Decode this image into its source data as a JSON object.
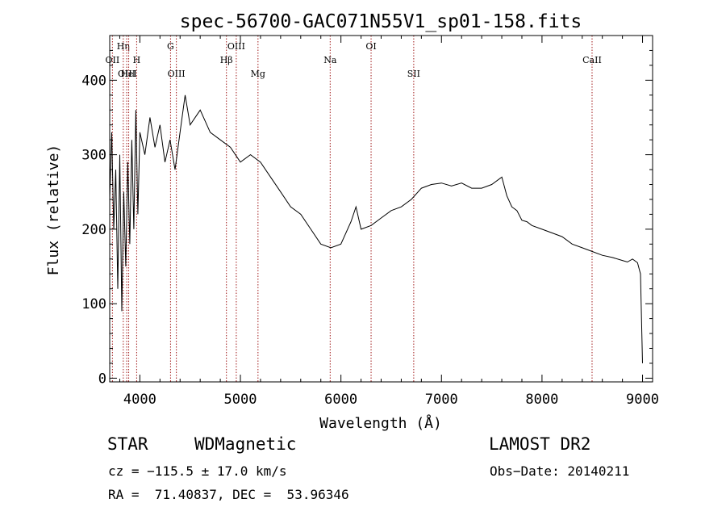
{
  "chart_data": {
    "type": "line",
    "title": "spec-56700-GAC071N55V1_sp01-158.fits",
    "xlabel": "Wavelength (Å)",
    "ylabel": "Flux (relative)",
    "xlim": [
      3700,
      9100
    ],
    "ylim": [
      -5,
      460
    ],
    "x_ticks": [
      4000,
      5000,
      6000,
      7000,
      8000,
      9000
    ],
    "x_tick_labels": [
      "4000",
      "5000",
      "6000",
      "7000",
      "8000",
      "9000"
    ],
    "y_ticks": [
      0,
      100,
      200,
      300,
      400
    ],
    "y_tick_labels": [
      "0",
      "100",
      "200",
      "300",
      "400"
    ],
    "series": [
      {
        "name": "spectrum",
        "x": [
          3700,
          3720,
          3740,
          3760,
          3780,
          3800,
          3820,
          3840,
          3860,
          3880,
          3900,
          3920,
          3940,
          3960,
          3980,
          4000,
          4050,
          4100,
          4150,
          4200,
          4250,
          4300,
          4350,
          4400,
          4450,
          4500,
          4600,
          4700,
          4800,
          4900,
          5000,
          5100,
          5200,
          5300,
          5400,
          5500,
          5600,
          5700,
          5800,
          5900,
          6000,
          6100,
          6150,
          6200,
          6300,
          6400,
          6500,
          6600,
          6700,
          6800,
          6900,
          7000,
          7100,
          7200,
          7300,
          7400,
          7500,
          7600,
          7650,
          7700,
          7750,
          7800,
          7850,
          7900,
          8000,
          8100,
          8200,
          8300,
          8400,
          8500,
          8600,
          8700,
          8800,
          8850,
          8900,
          8950,
          8980,
          9000
        ],
        "values": [
          240,
          330,
          200,
          280,
          120,
          300,
          90,
          250,
          150,
          290,
          180,
          320,
          200,
          360,
          220,
          330,
          300,
          350,
          310,
          340,
          290,
          320,
          280,
          330,
          380,
          340,
          360,
          330,
          320,
          310,
          290,
          300,
          290,
          270,
          250,
          230,
          220,
          200,
          180,
          175,
          180,
          210,
          230,
          200,
          205,
          215,
          225,
          230,
          240,
          255,
          260,
          262,
          258,
          262,
          255,
          255,
          260,
          270,
          245,
          230,
          225,
          212,
          210,
          205,
          200,
          195,
          190,
          180,
          175,
          170,
          165,
          162,
          158,
          156,
          160,
          155,
          140,
          20
        ]
      }
    ],
    "line_markers": [
      {
        "label": "OII",
        "x": 3727,
        "row": 2
      },
      {
        "label": "Hη",
        "x": 3835,
        "row": 1
      },
      {
        "label": "OIII",
        "x": 3869,
        "row": 4
      },
      {
        "label": "HeI",
        "x": 3889,
        "row": 4
      },
      {
        "label": "H",
        "x": 3968,
        "row": 2
      },
      {
        "label": "G",
        "x": 4305,
        "row": 1
      },
      {
        "label": "OIII",
        "x": 4363,
        "row": 4
      },
      {
        "label": "Hβ",
        "x": 4861,
        "row": 2
      },
      {
        "label": "OIII",
        "x": 4959,
        "row": 1
      },
      {
        "label": "Mg",
        "x": 5175,
        "row": 4
      },
      {
        "label": "Na",
        "x": 5893,
        "row": 2
      },
      {
        "label": "OI",
        "x": 6300,
        "row": 1
      },
      {
        "label": "SII",
        "x": 6724,
        "row": 4
      },
      {
        "label": "CaII",
        "x": 8498,
        "row": 2
      }
    ],
    "line_color": "#000000",
    "marker_color": "#a01818"
  },
  "info": {
    "object_class": "STAR",
    "subclass": "WDMagnetic",
    "survey": "LAMOST DR2",
    "redshift_text": "cz = −115.5 ± 17.0 km/s",
    "obs_date_text": "Obs−Date: 20140211",
    "radec_text": "RA =  71.40837, DEC =  53.96346"
  }
}
